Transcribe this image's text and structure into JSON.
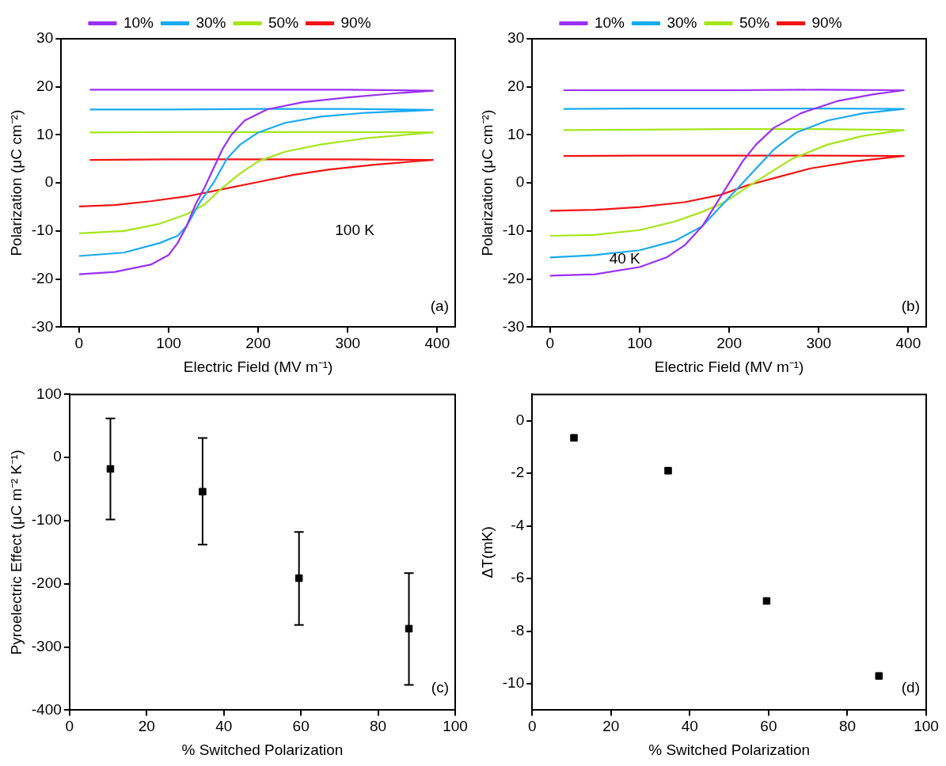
{
  "chart_data": [
    {
      "type": "line",
      "xlabel": "Electric Field (MV m⁻¹)",
      "ylabel": "Polarization (μC cm⁻²)",
      "xlim": [
        -20,
        420
      ],
      "xticks": [
        0,
        100,
        200,
        300,
        400
      ],
      "ylim": [
        -30,
        30
      ],
      "yticks": [
        -30,
        -20,
        -10,
        0,
        10,
        20,
        30
      ],
      "legend": "top",
      "marker": "none",
      "line_style": "solid",
      "annotations": [
        "100 K",
        "(a)"
      ],
      "series": [
        {
          "name": "10%",
          "color": "#9b30f5",
          "x": [
            0,
            40,
            80,
            100,
            110,
            120,
            130,
            140,
            150,
            160,
            170,
            185,
            210,
            250,
            300,
            350,
            395,
            300,
            200,
            100,
            12
          ],
          "values": [
            -19,
            -18.5,
            -17,
            -15,
            -12.5,
            -9,
            -4.5,
            -1,
            3,
            7,
            10,
            13,
            15.3,
            16.8,
            17.8,
            18.6,
            19.2,
            19.4,
            19.4,
            19.4,
            19.4
          ]
        },
        {
          "name": "30%",
          "color": "#18aaf0",
          "x": [
            0,
            50,
            90,
            110,
            120,
            135,
            150,
            165,
            180,
            200,
            230,
            270,
            320,
            395,
            300,
            200,
            100,
            12
          ],
          "values": [
            -15.2,
            -14.5,
            -12.5,
            -11,
            -9,
            -4,
            0,
            5,
            8,
            10.5,
            12.5,
            13.8,
            14.6,
            15.2,
            15.4,
            15.4,
            15.3,
            15.3
          ]
        },
        {
          "name": "50%",
          "color": "#a4e61a",
          "x": [
            0,
            50,
            90,
            120,
            140,
            160,
            180,
            200,
            230,
            270,
            320,
            395,
            300,
            200,
            100,
            12
          ],
          "values": [
            -10.5,
            -10,
            -8.5,
            -6.5,
            -4.5,
            -1,
            2,
            4.5,
            6.5,
            8,
            9.3,
            10.5,
            10.6,
            10.6,
            10.6,
            10.5
          ]
        },
        {
          "name": "90%",
          "color": "#f21414",
          "x": [
            0,
            40,
            80,
            120,
            160,
            200,
            240,
            280,
            330,
            395,
            300,
            200,
            100,
            12
          ],
          "values": [
            -4.9,
            -4.6,
            -3.8,
            -2.8,
            -1.3,
            0.2,
            1.7,
            2.8,
            3.8,
            4.8,
            4.9,
            4.9,
            4.9,
            4.8
          ]
        }
      ]
    },
    {
      "type": "line",
      "xlabel": "Electric Field (MV m⁻¹)",
      "ylabel": "Polarization (μC cm⁻²)",
      "xlim": [
        -20,
        420
      ],
      "xticks": [
        0,
        100,
        200,
        300,
        400
      ],
      "ylim": [
        -30,
        30
      ],
      "yticks": [
        -30,
        -20,
        -10,
        0,
        10,
        20,
        30
      ],
      "legend": "top",
      "marker": "none",
      "line_style": "solid",
      "annotations": [
        "40 K",
        "(b)"
      ],
      "series": [
        {
          "name": "10%",
          "color": "#9b30f5",
          "x": [
            0,
            50,
            100,
            130,
            150,
            170,
            185,
            200,
            215,
            230,
            250,
            280,
            320,
            360,
            395,
            300,
            200,
            100,
            15
          ],
          "values": [
            -19.3,
            -19,
            -17.5,
            -15.5,
            -13,
            -9,
            -4.5,
            0,
            4.5,
            8,
            11.5,
            14.5,
            17,
            18.4,
            19.3,
            19.4,
            19.3,
            19.3,
            19.3
          ]
        },
        {
          "name": "30%",
          "color": "#18aaf0",
          "x": [
            0,
            50,
            100,
            140,
            170,
            190,
            210,
            230,
            250,
            275,
            310,
            350,
            395,
            300,
            200,
            100,
            15
          ],
          "values": [
            -15.5,
            -15,
            -14,
            -12,
            -9,
            -5,
            -1,
            3,
            7,
            10.5,
            13,
            14.5,
            15.4,
            15.5,
            15.5,
            15.5,
            15.4
          ]
        },
        {
          "name": "50%",
          "color": "#a4e61a",
          "x": [
            0,
            50,
            100,
            140,
            170,
            195,
            215,
            240,
            270,
            310,
            350,
            395,
            300,
            200,
            100,
            15
          ],
          "values": [
            -11,
            -10.8,
            -9.8,
            -8,
            -6,
            -4,
            -1.5,
            1.5,
            5,
            8,
            9.8,
            11,
            11.2,
            11.2,
            11.1,
            11
          ]
        },
        {
          "name": "90%",
          "color": "#f21414",
          "x": [
            0,
            50,
            100,
            150,
            190,
            220,
            250,
            290,
            340,
            395,
            300,
            200,
            100,
            15
          ],
          "values": [
            -5.8,
            -5.6,
            -5,
            -4,
            -2.5,
            -0.5,
            1,
            3,
            4.5,
            5.6,
            5.7,
            5.7,
            5.7,
            5.6
          ]
        }
      ]
    },
    {
      "type": "scatter",
      "xlabel": "% Switched Polarization",
      "ylabel": "Pyroelectric Effect (μC m⁻² K⁻¹)",
      "xlim": [
        0,
        100
      ],
      "xticks": [
        0,
        20,
        40,
        60,
        80,
        100
      ],
      "ylim": [
        -400,
        100
      ],
      "yticks": [
        -400,
        -300,
        -200,
        -100,
        0,
        100
      ],
      "marker": "square",
      "annotations": [
        "(c)"
      ],
      "x": [
        10.6,
        34.5,
        59.5,
        88
      ],
      "series": [
        {
          "color": "#000000",
          "values": [
            -18,
            -54,
            -191,
            -271
          ],
          "errors": [
            [
              -98,
              62
            ],
            [
              -138,
              31
            ],
            [
              -265,
              -118
            ],
            [
              -360,
              -183
            ]
          ]
        }
      ]
    },
    {
      "type": "scatter",
      "xlabel": "% Switched Polarization",
      "ylabel": "ΔT(mK)",
      "xlim": [
        0,
        100
      ],
      "xticks": [
        0,
        20,
        40,
        60,
        80,
        100
      ],
      "ylim": [
        -11,
        1
      ],
      "yticks": [
        -10,
        -8,
        -6,
        -4,
        -2,
        0
      ],
      "marker": "square",
      "annotations": [
        "(d)"
      ],
      "x": [
        10.6,
        34.5,
        59.5,
        88
      ],
      "series": [
        {
          "color": "#000000",
          "values": [
            -0.65,
            -1.9,
            -6.85,
            -9.7
          ]
        }
      ]
    }
  ]
}
